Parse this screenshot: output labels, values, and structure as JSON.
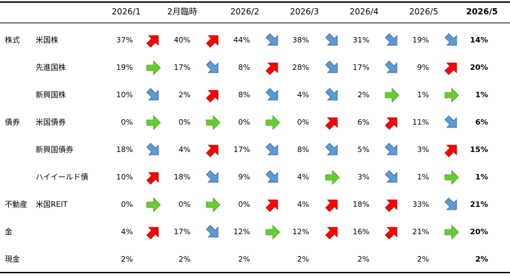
{
  "columns": [
    "2026/1",
    "2月臨時",
    "2026/2",
    "2026/3",
    "2026/4",
    "2026/5",
    "2026/5"
  ],
  "colors": {
    "up": "#ff0000",
    "flat": "#66cc33",
    "down": "#5b9bd5",
    "outline": "#3a5f8a"
  },
  "rows": [
    {
      "category": "株式",
      "name": "米国株",
      "values": [
        "37%",
        "40%",
        "44%",
        "38%",
        "31%",
        "19%",
        "14%"
      ],
      "arrows": [
        "up",
        "up",
        "down",
        "down",
        "down",
        "down"
      ]
    },
    {
      "category": "",
      "name": "先進国株",
      "values": [
        "19%",
        "17%",
        "8%",
        "28%",
        "17%",
        "9%",
        "20%"
      ],
      "arrows": [
        "flat",
        "down",
        "up",
        "down",
        "down",
        "up"
      ]
    },
    {
      "category": "",
      "name": "新興国株",
      "values": [
        "10%",
        "2%",
        "8%",
        "4%",
        "2%",
        "1%",
        "1%"
      ],
      "arrows": [
        "down",
        "up",
        "down",
        "down",
        "flat",
        "flat"
      ]
    },
    {
      "category": "債券",
      "name": "米国債券",
      "values": [
        "0%",
        "0%",
        "0%",
        "0%",
        "6%",
        "11%",
        "6%"
      ],
      "arrows": [
        "flat",
        "flat",
        "flat",
        "up",
        "up",
        "down"
      ]
    },
    {
      "category": "",
      "name": "新興国債券",
      "values": [
        "18%",
        "4%",
        "17%",
        "8%",
        "5%",
        "3%",
        "15%"
      ],
      "arrows": [
        "down",
        "up",
        "down",
        "down",
        "down",
        "up"
      ]
    },
    {
      "category": "",
      "name": "ハイイールド債",
      "values": [
        "10%",
        "18%",
        "9%",
        "4%",
        "3%",
        "1%",
        "1%"
      ],
      "arrows": [
        "up",
        "down",
        "down",
        "flat",
        "down",
        "flat"
      ]
    },
    {
      "category": "不動産",
      "name": "米国REIT",
      "values": [
        "0%",
        "0%",
        "0%",
        "4%",
        "18%",
        "33%",
        "21%"
      ],
      "arrows": [
        "flat",
        "flat",
        "up",
        "up",
        "up",
        "down"
      ]
    },
    {
      "category": "金",
      "name": "",
      "values": [
        "4%",
        "17%",
        "12%",
        "12%",
        "16%",
        "21%",
        "20%"
      ],
      "arrows": [
        "up",
        "down",
        "flat",
        "up",
        "up",
        "flat"
      ]
    },
    {
      "category": "現金",
      "name": "",
      "values": [
        "2%",
        "2%",
        "2%",
        "2%",
        "2%",
        "2%",
        "2%"
      ],
      "arrows": []
    }
  ]
}
